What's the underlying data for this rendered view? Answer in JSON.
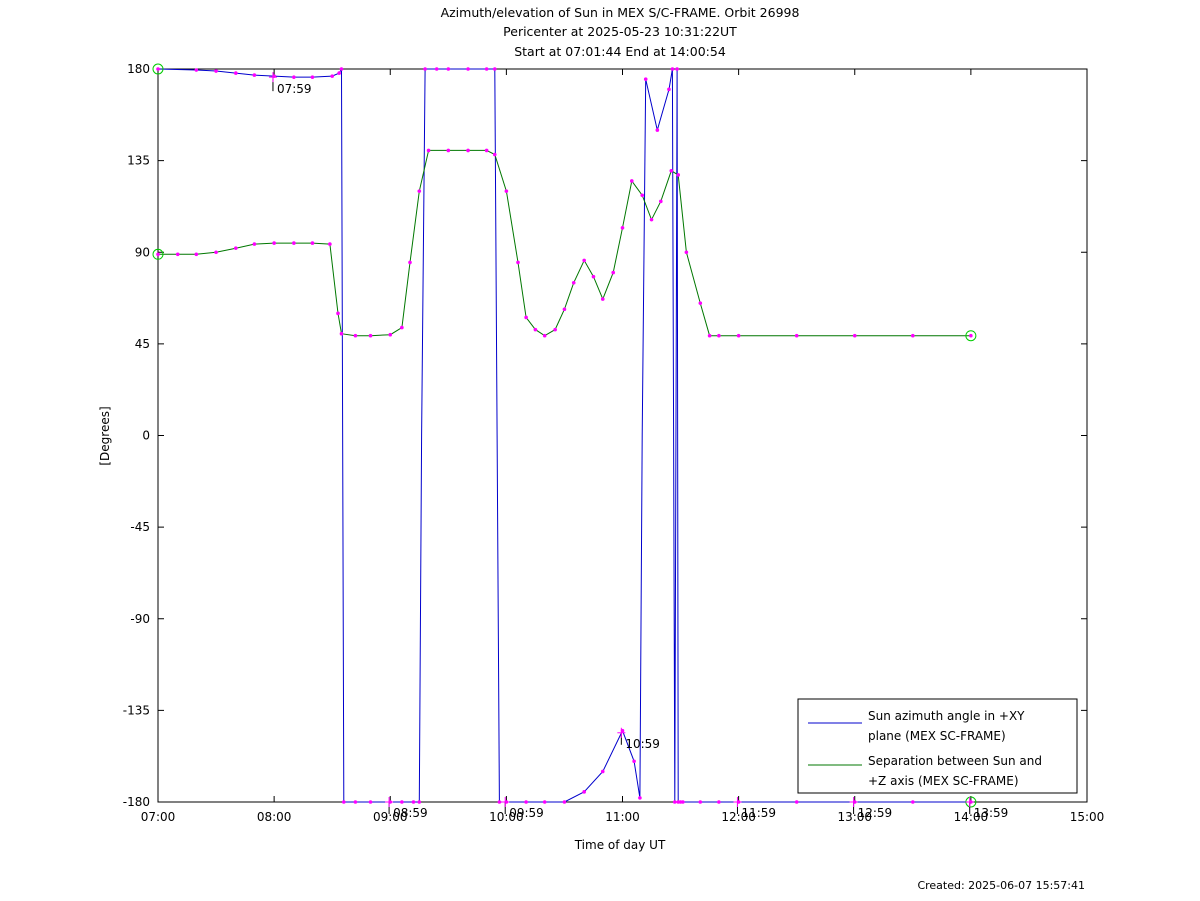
{
  "chart_data": {
    "type": "line",
    "title": "Azimuth/elevation of Sun in MEX S/C-FRAME.  Orbit 26998",
    "subtitle": [
      "Pericenter at 2025-05-23 10:31:22UT",
      "Start at 07:01:44 End at 14:00:54"
    ],
    "xlabel": "Time of day UT",
    "ylabel": "[Degrees]",
    "xlim": [
      7.0,
      15.0
    ],
    "ylim": [
      -180,
      180
    ],
    "x_ticks": [
      "07:00",
      "08:00",
      "09:00",
      "10:00",
      "11:00",
      "12:00",
      "13:00",
      "14:00",
      "15:00"
    ],
    "y_ticks": [
      "180",
      "135",
      "90",
      "45",
      "0",
      "-45",
      "-90",
      "-135",
      "-180"
    ],
    "grid": false,
    "legend_position": "bottom-right",
    "colors": {
      "azimuth": "#0000cc",
      "separation": "#007700",
      "markers": "#ff00ff",
      "endpoints": "#00cc00"
    },
    "series": [
      {
        "name": "Sun azimuth angle in +XY plane (MEX SC-FRAME)",
        "legend_lines": [
          "Sun azimuth angle in +XY",
          "plane (MEX SC-FRAME)"
        ],
        "x": [
          7.0,
          7.33,
          7.5,
          7.67,
          7.83,
          8.0,
          8.17,
          8.33,
          8.5,
          8.56,
          8.58,
          8.6,
          8.7,
          8.83,
          9.0,
          9.1,
          9.2,
          9.25,
          9.27,
          9.3,
          9.4,
          9.5,
          9.67,
          9.83,
          9.9,
          9.92,
          9.94,
          10.0,
          10.17,
          10.33,
          10.5,
          10.67,
          10.83,
          11.0,
          11.1,
          11.15,
          11.17,
          11.2,
          11.3,
          11.4,
          11.43,
          11.44,
          11.45,
          11.47,
          11.48,
          11.5,
          11.52,
          11.67,
          11.83,
          12.0,
          12.5,
          13.0,
          13.5,
          14.0
        ],
        "y": [
          180,
          179.5,
          179,
          178,
          177,
          176.5,
          176,
          176,
          176.5,
          178,
          180,
          -180,
          -180,
          -180,
          -180,
          -180,
          -180,
          -180,
          0,
          180,
          180,
          180,
          180,
          180,
          180,
          0,
          -180,
          -180,
          -180,
          -180,
          -180,
          -175,
          -165,
          -145,
          -160,
          -178,
          0,
          175,
          150,
          170,
          180,
          0,
          -180,
          180,
          -180,
          -180,
          -180,
          -180,
          -180,
          -180,
          -180,
          -180,
          -180,
          -180
        ]
      },
      {
        "name": "Separation between Sun and +Z axis (MEX SC-FRAME)",
        "legend_lines": [
          "Separation between Sun and",
          "+Z axis (MEX SC-FRAME)"
        ],
        "x": [
          7.0,
          7.17,
          7.33,
          7.5,
          7.67,
          7.83,
          8.0,
          8.17,
          8.33,
          8.48,
          8.55,
          8.58,
          8.7,
          8.83,
          9.0,
          9.1,
          9.17,
          9.25,
          9.33,
          9.5,
          9.67,
          9.83,
          9.9,
          10.0,
          10.1,
          10.17,
          10.25,
          10.33,
          10.42,
          10.5,
          10.58,
          10.67,
          10.75,
          10.83,
          10.92,
          11.0,
          11.08,
          11.17,
          11.25,
          11.33,
          11.42,
          11.48,
          11.55,
          11.67,
          11.75,
          11.83,
          12.0,
          12.5,
          13.0,
          13.5,
          14.0
        ],
        "y": [
          89,
          89,
          89,
          90,
          92,
          94,
          94.5,
          94.5,
          94.5,
          94,
          60,
          50,
          49,
          49,
          49.5,
          53,
          85,
          120,
          140,
          140,
          140,
          140,
          138,
          120,
          85,
          58,
          52,
          49,
          52,
          62,
          75,
          86,
          78,
          67,
          80,
          102,
          125,
          118,
          106,
          115,
          130,
          128,
          90,
          65,
          49,
          49,
          49,
          49,
          49,
          49,
          49
        ]
      }
    ],
    "annotations": [
      {
        "label": "07:59",
        "x": 7.99,
        "y": 176
      },
      {
        "label": "08:59",
        "x": 8.99,
        "y": -180
      },
      {
        "label": "09:59",
        "x": 9.99,
        "y": -180
      },
      {
        "label": "10:59",
        "x": 10.99,
        "y": -146
      },
      {
        "label": "11:59",
        "x": 11.99,
        "y": -180
      },
      {
        "label": "12:59",
        "x": 12.99,
        "y": -180
      },
      {
        "label": "13:59",
        "x": 13.99,
        "y": -180
      }
    ],
    "footer": "Created: 2025-06-07 15:57:41"
  }
}
